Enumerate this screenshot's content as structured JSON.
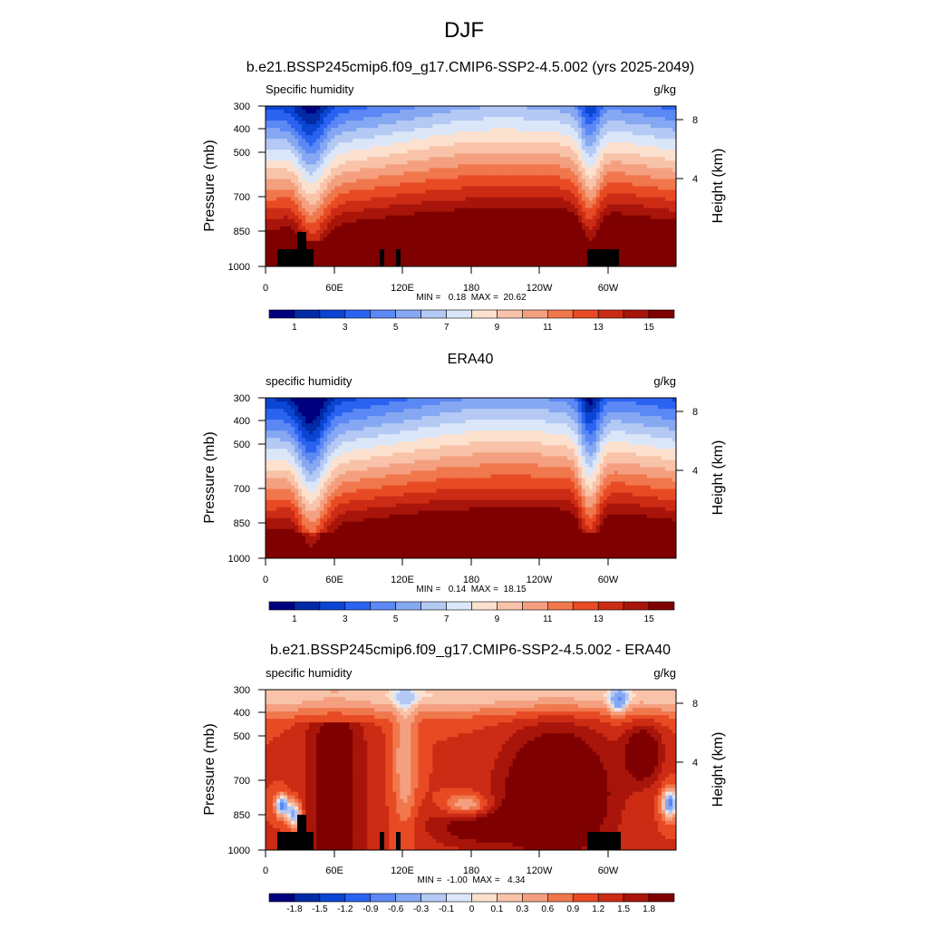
{
  "title": "DJF",
  "chart_data": [
    {
      "type": "heatmap",
      "title": "b.e21.BSSP245cmip6.f09_g17.CMIP6-SSP2-4.5.002 (yrs 2025-2049)",
      "left_label": "Specific humidity",
      "units": "g/kg",
      "ylabel": "Pressure (mb)",
      "ylabel_right": "Height (km)",
      "yticks": [
        300,
        400,
        500,
        700,
        850,
        1000
      ],
      "yticks_right": [
        8,
        4
      ],
      "xticks": [
        "0",
        "60E",
        "120E",
        "180",
        "120W",
        "60W"
      ],
      "min": 0.18,
      "max": 20.62,
      "stats_text": "MIN =   0.18  MAX =  20.62",
      "colorbar_labels": [
        "1",
        "3",
        "5",
        "7",
        "9",
        "11",
        "13",
        "15"
      ],
      "mask": true
    },
    {
      "type": "heatmap",
      "title": "ERA40",
      "left_label": "specific humidity",
      "units": "g/kg",
      "ylabel": "Pressure (mb)",
      "ylabel_right": "Height (km)",
      "yticks": [
        300,
        400,
        500,
        700,
        850,
        1000
      ],
      "yticks_right": [
        8,
        4
      ],
      "xticks": [
        "0",
        "60E",
        "120E",
        "180",
        "120W",
        "60W"
      ],
      "min": 0.14,
      "max": 18.15,
      "stats_text": "MIN =   0.14  MAX =  18.15",
      "colorbar_labels": [
        "1",
        "3",
        "5",
        "7",
        "9",
        "11",
        "13",
        "15"
      ],
      "mask": false
    },
    {
      "type": "heatmap",
      "title": "b.e21.BSSP245cmip6.f09_g17.CMIP6-SSP2-4.5.002 - ERA40",
      "left_label": "specific humidity",
      "units": "g/kg",
      "ylabel": "Pressure (mb)",
      "ylabel_right": "Height (km)",
      "yticks": [
        300,
        400,
        500,
        700,
        850,
        1000
      ],
      "yticks_right": [
        8,
        4
      ],
      "xticks": [
        "0",
        "60E",
        "120E",
        "180",
        "120W",
        "60W"
      ],
      "min": -1.0,
      "max": 4.34,
      "stats_text": "MIN =  -1.00  MAX =   4.34",
      "colorbar_labels": [
        "-1.8",
        "-1.5",
        "-1.2",
        "-0.9",
        "-0.6",
        "-0.3",
        "-0.1",
        "0",
        "0.1",
        "0.3",
        "0.6",
        "0.9",
        "1.2",
        "1.5",
        "1.8"
      ],
      "mask": true
    }
  ],
  "colors": {
    "palette": [
      "#00007f",
      "#002aa6",
      "#0b45d4",
      "#2b63f1",
      "#5b88f4",
      "#86a8f2",
      "#b4c9f4",
      "#dbe7f8",
      "#fde1cf",
      "#f8c3a9",
      "#f4a080",
      "#f1774d",
      "#e84b24",
      "#cc2b14",
      "#a8150a",
      "#7f0000"
    ]
  }
}
